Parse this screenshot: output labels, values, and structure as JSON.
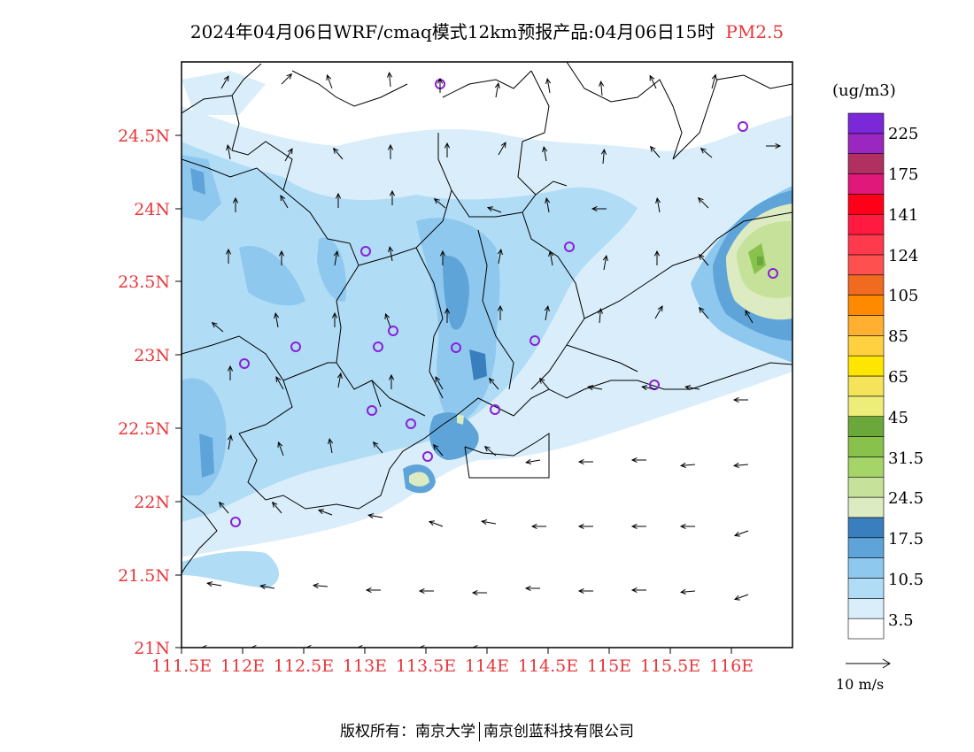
{
  "header": {
    "title": "2024年04月06日WRF/cmaq模式12km预报产品:04月06日15时",
    "pollutant": "PM2.5"
  },
  "axes": {
    "lat_ticks": [
      "24.5N",
      "24N",
      "23.5N",
      "23N",
      "22.5N",
      "22N",
      "21.5N",
      "21N"
    ],
    "lon_ticks": [
      "111.5E",
      "112E",
      "112.5E",
      "113E",
      "113.5E",
      "114E",
      "114.5E",
      "115E",
      "115.5E",
      "116E"
    ]
  },
  "legend": {
    "units": "(ug/m3)",
    "labels": [
      "225",
      "175",
      "141",
      "124",
      "105",
      "85",
      "65",
      "45",
      "31.5",
      "24.5",
      "17.5",
      "10.5",
      "3.5"
    ],
    "colors": [
      "#ffffff",
      "#d9eefa",
      "#b0dcf5",
      "#8fc8ee",
      "#5fa4d8",
      "#3a7fbd",
      "#dcebc2",
      "#c5e19a",
      "#a5d468",
      "#88c14b",
      "#6aa83c",
      "#eded7a",
      "#f5e35a",
      "#ffe600",
      "#ffd040",
      "#ffb030",
      "#ff8a00",
      "#f06a20",
      "#ff5050",
      "#ff3a4c",
      "#ff1a40",
      "#ff0018",
      "#e0187a",
      "#b03060",
      "#9a28c0",
      "#7a28d8"
    ],
    "stroke": "#000000"
  },
  "wind": {
    "scale_label": "10 m/s"
  },
  "map_colors": {
    "boundary": "#000000",
    "tick_label": "#e8373a",
    "station": "#8a20d8"
  },
  "footer": {
    "copyright_left": "版权所有：南京大学",
    "copyright_right": "南京创蓝科技有限公司"
  }
}
